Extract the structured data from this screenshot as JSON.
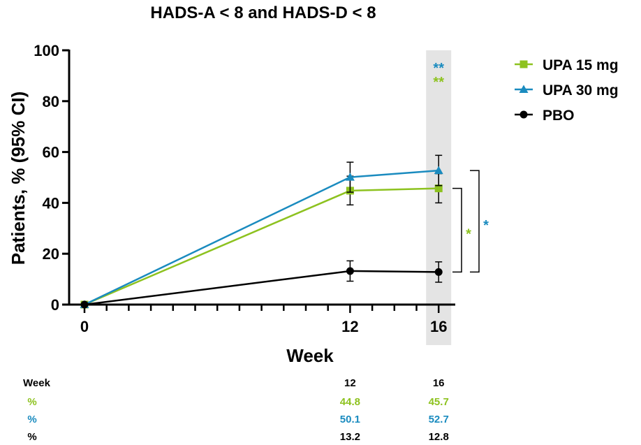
{
  "chart_data": {
    "type": "line",
    "title": "HADS-A < 8 and HADS-D < 8",
    "xlabel": "Week",
    "ylabel": "Patients, % (95% CI)",
    "xlim": [
      0,
      17
    ],
    "ylim": [
      0,
      100
    ],
    "x_ticks": [
      0,
      12,
      16
    ],
    "y_ticks": [
      0,
      20,
      40,
      60,
      80,
      100
    ],
    "x": [
      0,
      12,
      16
    ],
    "highlight_x": 16,
    "series": [
      {
        "name": "UPA 15 mg",
        "color": "#8dc21f",
        "marker": "square",
        "values": [
          0,
          44.8,
          45.7
        ],
        "ci_low": [
          0,
          39.2,
          40.0
        ],
        "ci_high": [
          0,
          50.5,
          51.5
        ]
      },
      {
        "name": "UPA 30 mg",
        "color": "#1a8bbf",
        "marker": "triangle",
        "values": [
          0,
          50.1,
          52.7
        ],
        "ci_low": [
          0,
          44.2,
          46.8
        ],
        "ci_high": [
          0,
          56.0,
          58.7
        ]
      },
      {
        "name": "PBO",
        "color": "#000000",
        "marker": "circle",
        "values": [
          0,
          13.2,
          12.8
        ],
        "ci_low": [
          0,
          9.2,
          8.8
        ],
        "ci_high": [
          0,
          17.2,
          16.8
        ]
      }
    ],
    "significance": {
      "at_week16_top": [
        {
          "label": "**",
          "color": "#1a8bbf"
        },
        {
          "label": "**",
          "color": "#8dc21f"
        }
      ],
      "brackets": [
        {
          "label": "*",
          "color": "#8dc21f",
          "from": "UPA 15 mg",
          "to": "PBO"
        },
        {
          "label": "*",
          "color": "#1a8bbf",
          "from": "UPA 30 mg",
          "to": "PBO"
        }
      ]
    },
    "legend_position": "top-right"
  },
  "table": {
    "header": {
      "label": "Week",
      "cols": [
        "12",
        "16"
      ]
    },
    "rows": [
      {
        "label": "%",
        "color": "#8dc21f",
        "cols": [
          "44.8",
          "45.7"
        ]
      },
      {
        "label": "%",
        "color": "#1a8bbf",
        "cols": [
          "50.1",
          "52.7"
        ]
      },
      {
        "label": "%",
        "color": "#000000",
        "cols": [
          "13.2",
          "12.8"
        ]
      }
    ]
  }
}
